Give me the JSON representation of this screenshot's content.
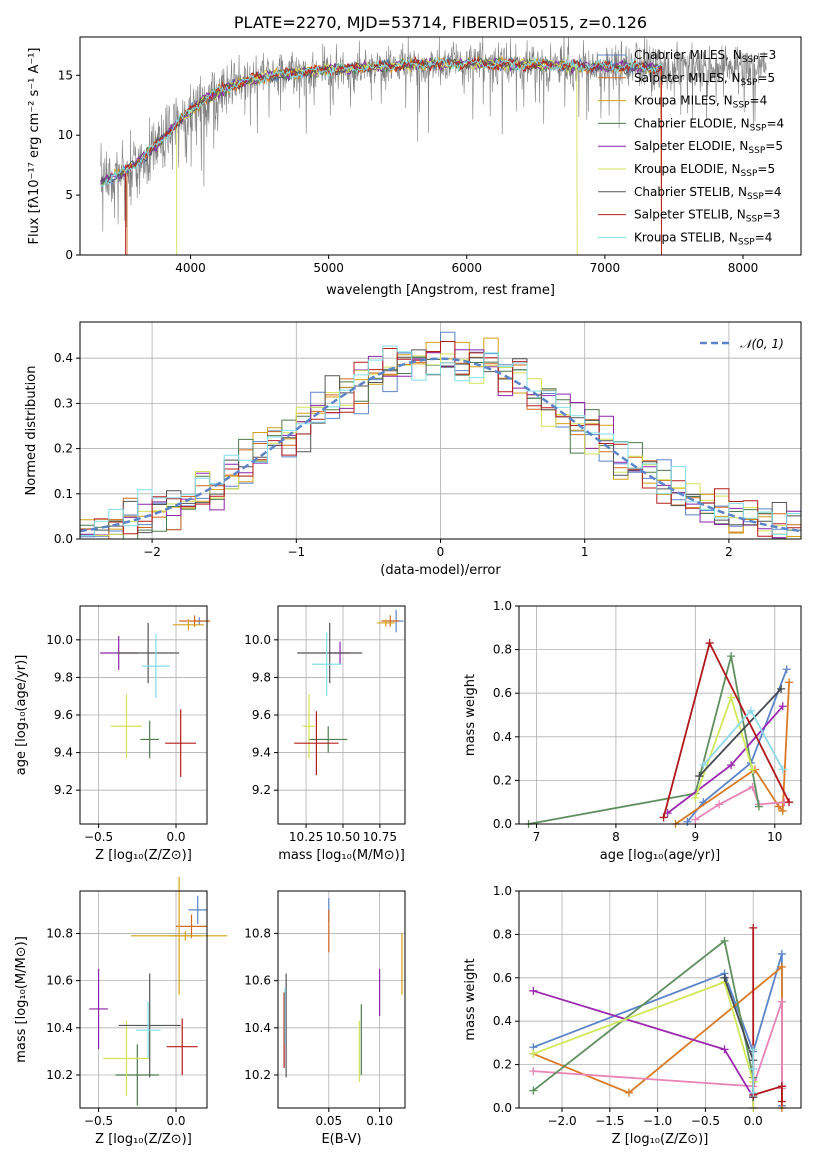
{
  "colors": {
    "Chabrier MILES": "#5b84c9",
    "Salpeter MILES": "#d2691e",
    "Kroupa MILES": "#d4a017",
    "Chabrier ELODIE": "#4e7a4e",
    "Salpeter ELODIE": "#8e24aa",
    "Kroupa ELODIE": "#d4e157",
    "Chabrier STELIB": "#555555",
    "Salpeter STELIB": "#b71c1c",
    "Kroupa STELIB": "#80deea",
    "Normal": "#5b84c9",
    "Data": "#808080",
    "mw_lines": [
      "#5b84c9",
      "#d97a26",
      "#e884b7",
      "#5f8f5f",
      "#9c27b0",
      "#cfe85a",
      "#444a52",
      "#b0161a",
      "#8fd9e8"
    ]
  },
  "chart_data": [
    {
      "id": "spectrum",
      "type": "line",
      "title": "PLATE=2270, MJD=53714, FIBERID=0515, z=0.126",
      "xlabel": "wavelength [Angstrom, rest frame]",
      "ylabel": "Flux [fλ10⁻¹⁷ erg cm⁻² s⁻¹ A⁻¹]",
      "xlim": [
        3200,
        8420
      ],
      "ylim": [
        0,
        18.2
      ],
      "xticks": [
        "4000",
        "5000",
        "6000",
        "7000",
        "8000"
      ],
      "yticks": [
        "0",
        "5",
        "10",
        "15"
      ],
      "legend_position": "right",
      "legend": [
        {
          "label": "Chabrier MILES, N",
          "sub": "SSP",
          "suffix": "=3",
          "color": "Chabrier MILES"
        },
        {
          "label": "Salpeter MILES, N",
          "sub": "SSP",
          "suffix": "=5",
          "color": "Salpeter MILES"
        },
        {
          "label": "Kroupa MILES, N",
          "sub": "SSP",
          "suffix": "=4",
          "color": "Kroupa MILES"
        },
        {
          "label": "Chabrier ELODIE, N",
          "sub": "SSP",
          "suffix": "=4",
          "color": "Chabrier ELODIE"
        },
        {
          "label": "Salpeter ELODIE, N",
          "sub": "SSP",
          "suffix": "=5",
          "color": "Salpeter ELODIE"
        },
        {
          "label": "Kroupa ELODIE, N",
          "sub": "SSP",
          "suffix": "=5",
          "color": "Kroupa ELODIE"
        },
        {
          "label": "Chabrier STELIB, N",
          "sub": "SSP",
          "suffix": "=4",
          "color": "Chabrier STELIB"
        },
        {
          "label": "Salpeter STELIB, N",
          "sub": "SSP",
          "suffix": "=3",
          "color": "Salpeter STELIB"
        },
        {
          "label": "Kroupa STELIB, N",
          "sub": "SSP",
          "suffix": "=4",
          "color": "Kroupa STELIB"
        }
      ],
      "continuum": {
        "x": [
          3350,
          3500,
          3700,
          3900,
          4100,
          4300,
          4500,
          4800,
          5200,
          5600,
          6000,
          6400,
          6800,
          7200,
          7430
        ],
        "y": [
          6.0,
          6.8,
          8.5,
          11.0,
          13.0,
          14.2,
          14.8,
          15.3,
          15.6,
          15.9,
          16.0,
          15.9,
          15.8,
          15.7,
          15.6
        ]
      },
      "truncations": [
        {
          "series": "Salpeter STELIB",
          "x_start": 3530,
          "x_end": 7410
        },
        {
          "series": "Kroupa ELODIE",
          "x_start": 3900,
          "x_end": 6800
        },
        {
          "series": "Salpeter MILES",
          "x_start": 3540,
          "x_end": 7410
        }
      ],
      "data_range": [
        3350,
        8170
      ]
    },
    {
      "id": "residuals",
      "type": "area",
      "xlabel": "(data-model)/error",
      "ylabel": "Normed distribution",
      "xlim": [
        -2.5,
        2.5
      ],
      "ylim": [
        0,
        0.48
      ],
      "xticks": [
        "−2",
        "−1",
        "0",
        "1",
        "2"
      ],
      "xtick_values": [
        -2,
        -1,
        0,
        1,
        2
      ],
      "yticks": [
        "0.0",
        "0.1",
        "0.2",
        "0.3",
        "0.4"
      ],
      "ytick_values": [
        0,
        0.1,
        0.2,
        0.3,
        0.4
      ],
      "legend_position": "top-right",
      "legend": [
        {
          "label": "𝒩(0, 1)",
          "style": "dashed"
        }
      ],
      "bin_width": 0.1,
      "series": [
        "Chabrier MILES",
        "Salpeter MILES",
        "Kroupa MILES",
        "Chabrier ELODIE",
        "Salpeter ELODIE",
        "Kroupa ELODIE",
        "Chabrier STELIB",
        "Salpeter STELIB",
        "Kroupa STELIB"
      ]
    },
    {
      "id": "age_vs_Z",
      "type": "scatter",
      "xlabel": "Z [log₁₀(Z/Z⊙)]",
      "ylabel": "age  [log₁₀(age/yr)]",
      "xlim": [
        -0.62,
        0.2
      ],
      "ylim": [
        9.02,
        10.18
      ],
      "xticks": [
        "−0.5",
        "0.0"
      ],
      "xtick_values": [
        -0.5,
        0.0
      ],
      "yticks": [
        "9.2",
        "9.4",
        "9.6",
        "9.8",
        "10.0"
      ],
      "ytick_values": [
        9.2,
        9.4,
        9.6,
        9.8,
        10.0
      ],
      "points": [
        {
          "series": "Chabrier MILES",
          "x": 0.15,
          "y": 10.1,
          "xerr": 0.04,
          "yerr": 0.02
        },
        {
          "series": "Salpeter MILES",
          "x": 0.12,
          "y": 10.1,
          "xerr": 0.1,
          "yerr": 0.03
        },
        {
          "series": "Kroupa MILES",
          "x": 0.08,
          "y": 10.08,
          "xerr": 0.1,
          "yerr": 0.03
        },
        {
          "series": "Chabrier ELODIE",
          "x": -0.17,
          "y": 9.47,
          "xerr": 0.06,
          "yerr": 0.1
        },
        {
          "series": "Salpeter ELODIE",
          "x": -0.37,
          "y": 9.93,
          "xerr": 0.12,
          "yerr": 0.09
        },
        {
          "series": "Kroupa ELODIE",
          "x": -0.32,
          "y": 9.54,
          "xerr": 0.1,
          "yerr": 0.17
        },
        {
          "series": "Chabrier STELIB",
          "x": -0.18,
          "y": 9.93,
          "xerr": 0.2,
          "yerr": 0.16
        },
        {
          "series": "Salpeter STELIB",
          "x": 0.03,
          "y": 9.45,
          "xerr": 0.1,
          "yerr": 0.18
        },
        {
          "series": "Kroupa STELIB",
          "x": -0.13,
          "y": 9.86,
          "xerr": 0.09,
          "yerr": 0.17
        }
      ]
    },
    {
      "id": "age_vs_mass",
      "type": "scatter",
      "xlabel": "mass [log₁₀(M/M⊙)]",
      "xlim": [
        10.06,
        10.92
      ],
      "ylim": [
        9.02,
        10.18
      ],
      "xticks": [
        "10.25",
        "10.50",
        "10.75"
      ],
      "xtick_values": [
        10.25,
        10.5,
        10.75
      ],
      "yticks": [
        "9.2",
        "9.4",
        "9.6",
        "9.8",
        "10.0"
      ],
      "ytick_values": [
        9.2,
        9.4,
        9.6,
        9.8,
        10.0
      ],
      "points": [
        {
          "series": "Chabrier MILES",
          "x": 10.86,
          "y": 10.1,
          "xerr": 0.05,
          "yerr": 0.06
        },
        {
          "series": "Salpeter MILES",
          "x": 10.82,
          "y": 10.1,
          "xerr": 0.06,
          "yerr": 0.03
        },
        {
          "series": "Kroupa MILES",
          "x": 10.79,
          "y": 10.09,
          "xerr": 0.06,
          "yerr": 0.02
        },
        {
          "series": "Chabrier ELODIE",
          "x": 10.4,
          "y": 9.47,
          "xerr": 0.13,
          "yerr": 0.07
        },
        {
          "series": "Salpeter ELODIE",
          "x": 10.48,
          "y": 9.93,
          "xerr": 0.07,
          "yerr": 0.06
        },
        {
          "series": "Kroupa ELODIE",
          "x": 10.27,
          "y": 9.54,
          "xerr": 0.04,
          "yerr": 0.17
        },
        {
          "series": "Chabrier STELIB",
          "x": 10.41,
          "y": 9.93,
          "xerr": 0.22,
          "yerr": 0.16
        },
        {
          "series": "Salpeter STELIB",
          "x": 10.32,
          "y": 9.45,
          "xerr": 0.15,
          "yerr": 0.17
        },
        {
          "series": "Kroupa STELIB",
          "x": 10.39,
          "y": 9.87,
          "xerr": 0.1,
          "yerr": 0.17
        }
      ]
    },
    {
      "id": "mw_vs_age",
      "type": "line",
      "xlabel": "age  [log₁₀(age/yr)]",
      "ylabel": "mass weight",
      "xlim": [
        6.78,
        10.33
      ],
      "ylim": [
        0,
        1.0
      ],
      "xticks": [
        "7",
        "8",
        "9",
        "10"
      ],
      "xtick_values": [
        7,
        8,
        9,
        10
      ],
      "yticks": [
        "0.0",
        "0.2",
        "0.4",
        "0.6",
        "0.8",
        "1.0"
      ],
      "ytick_values": [
        0,
        0.2,
        0.4,
        0.6,
        0.8,
        1.0
      ],
      "series": [
        {
          "color_index": 0,
          "x": [
            8.9,
            9.1,
            9.7,
            10.15
          ],
          "y": [
            0.01,
            0.1,
            0.28,
            0.71
          ]
        },
        {
          "color_index": 1,
          "x": [
            8.75,
            9.75,
            10.05,
            10.1,
            10.18
          ],
          "y": [
            0.0,
            0.25,
            0.08,
            0.06,
            0.65
          ]
        },
        {
          "color_index": 2,
          "x": [
            9.0,
            9.3,
            9.72,
            9.8,
            10.12
          ],
          "y": [
            0.02,
            0.09,
            0.17,
            0.09,
            0.1
          ]
        },
        {
          "color_index": 3,
          "x": [
            6.9,
            9.0,
            9.45,
            9.8
          ],
          "y": [
            0.0,
            0.14,
            0.77,
            0.08
          ]
        },
        {
          "color_index": 4,
          "x": [
            8.65,
            9.45,
            10.1
          ],
          "y": [
            0.05,
            0.27,
            0.54
          ]
        },
        {
          "color_index": 5,
          "x": [
            9.0,
            9.45,
            9.72
          ],
          "y": [
            0.12,
            0.58,
            0.25
          ]
        },
        {
          "color_index": 6,
          "x": [
            9.05,
            10.08
          ],
          "y": [
            0.22,
            0.62
          ]
        },
        {
          "color_index": 7,
          "x": [
            8.6,
            9.18,
            10.18
          ],
          "y": [
            0.03,
            0.83,
            0.1
          ]
        },
        {
          "color_index": 8,
          "x": [
            9.1,
            9.7,
            10.1
          ],
          "y": [
            0.27,
            0.52,
            0.25
          ]
        }
      ]
    },
    {
      "id": "mass_vs_Z",
      "type": "scatter",
      "xlabel": "Z [log₁₀(Z/Z⊙)]",
      "ylabel": "mass [log₁₀(M/M⊙)]",
      "xlim": [
        -0.62,
        0.2
      ],
      "ylim": [
        10.06,
        10.98
      ],
      "xticks": [
        "−0.5",
        "0.0"
      ],
      "xtick_values": [
        -0.5,
        0.0
      ],
      "yticks": [
        "10.2",
        "10.4",
        "10.6",
        "10.8"
      ],
      "ytick_values": [
        10.2,
        10.4,
        10.6,
        10.8
      ],
      "points": [
        {
          "series": "Chabrier MILES",
          "x": 0.14,
          "y": 10.9,
          "xerr": 0.06,
          "yerr": 0.06
        },
        {
          "series": "Salpeter MILES",
          "x": 0.1,
          "y": 10.83,
          "xerr": 0.1,
          "yerr": 0.05
        },
        {
          "series": "Kroupa MILES",
          "x": 0.06,
          "y": 10.79,
          "xerr": 0.1,
          "yerr": 0.02
        },
        {
          "series": "Chabrier ELODIE",
          "x": -0.25,
          "y": 10.2,
          "xerr": 0.14,
          "yerr": 0.13
        },
        {
          "series": "Salpeter ELODIE",
          "x": -0.5,
          "y": 10.48,
          "xerr": 0.06,
          "yerr": 0.17
        },
        {
          "series": "Kroupa ELODIE",
          "x": -0.32,
          "y": 10.27,
          "xerr": 0.15,
          "yerr": 0.16
        },
        {
          "series": "Chabrier STELIB",
          "x": -0.17,
          "y": 10.41,
          "xerr": 0.2,
          "yerr": 0.22
        },
        {
          "series": "Salpeter STELIB",
          "x": 0.04,
          "y": 10.32,
          "xerr": 0.1,
          "yerr": 0.12
        },
        {
          "series": "Kroupa STELIB",
          "x": -0.18,
          "y": 10.39,
          "xerr": 0.08,
          "yerr": 0.12
        },
        {
          "series": "Kroupa MILES",
          "x": 0.02,
          "y": 10.79,
          "xerr": 0.31,
          "yerr": 0.25
        }
      ]
    },
    {
      "id": "mass_vs_ebv",
      "type": "scatter",
      "xlabel": "E(B-V)",
      "xlim": [
        0.0,
        0.125
      ],
      "ylim": [
        10.06,
        10.98
      ],
      "xticks": [
        "0.05",
        "0.10"
      ],
      "xtick_values": [
        0.05,
        0.1
      ],
      "yticks": [
        "10.2",
        "10.4",
        "10.6",
        "10.8"
      ],
      "ytick_values": [
        10.2,
        10.4,
        10.6,
        10.8
      ],
      "points": [
        {
          "series": "Chabrier MILES",
          "x": 0.05,
          "y": 10.9,
          "yerr": 0.05
        },
        {
          "series": "Salpeter MILES",
          "x": 0.05,
          "y": 10.81,
          "yerr": 0.09
        },
        {
          "series": "Chabrier ELODIE",
          "x": 0.082,
          "y": 10.35,
          "yerr": 0.15
        },
        {
          "series": "Salpeter ELODIE",
          "x": 0.1,
          "y": 10.55,
          "yerr": 0.1
        },
        {
          "series": "Kroupa ELODIE",
          "x": 0.08,
          "y": 10.3,
          "yerr": 0.13
        },
        {
          "series": "Chabrier STELIB",
          "x": 0.008,
          "y": 10.41,
          "yerr": 0.22
        },
        {
          "series": "Salpeter STELIB",
          "x": 0.006,
          "y": 10.39,
          "yerr": 0.16
        },
        {
          "series": "Kroupa STELIB",
          "x": 0.007,
          "y": 10.45,
          "yerr": 0.12
        },
        {
          "series": "Kroupa MILES",
          "x": 0.122,
          "y": 10.67,
          "yerr": 0.13
        }
      ]
    },
    {
      "id": "mw_vs_Z",
      "type": "line",
      "xlabel": "Z [log₁₀(Z/Z⊙)]",
      "ylabel": "mass weight",
      "xlim": [
        -2.45,
        0.5
      ],
      "ylim": [
        0,
        1.0
      ],
      "xticks": [
        "−2.0",
        "−1.5",
        "−1.0",
        "−0.5",
        "0.0"
      ],
      "xtick_values": [
        -2,
        -1.5,
        -1,
        -0.5,
        0
      ],
      "yticks": [
        "0.0",
        "0.2",
        "0.4",
        "0.6",
        "0.8",
        "1.0"
      ],
      "ytick_values": [
        0,
        0.2,
        0.4,
        0.6,
        0.8,
        1.0
      ],
      "series": [
        {
          "color_index": 0,
          "x": [
            -2.3,
            -0.3,
            0.0,
            0.3,
            0.3
          ],
          "y": [
            0.28,
            0.62,
            0.26,
            0.71,
            0.01
          ]
        },
        {
          "color_index": 1,
          "x": [
            -2.3,
            -1.3,
            0.3,
            0.3
          ],
          "y": [
            0.25,
            0.07,
            0.65,
            0.0
          ]
        },
        {
          "color_index": 2,
          "x": [
            -2.3,
            0.0,
            0.3,
            0.3
          ],
          "y": [
            0.17,
            0.1,
            0.49,
            0.09
          ]
        },
        {
          "color_index": 3,
          "x": [
            -2.3,
            -0.3,
            0.0,
            0.0
          ],
          "y": [
            0.08,
            0.77,
            0.14,
            0.05
          ]
        },
        {
          "color_index": 4,
          "x": [
            -2.3,
            -0.3,
            0.0,
            0.0
          ],
          "y": [
            0.54,
            0.27,
            0.05,
            0.0
          ]
        },
        {
          "color_index": 5,
          "x": [
            -2.3,
            -0.3,
            0.0,
            0.0
          ],
          "y": [
            0.25,
            0.58,
            0.12,
            0.0
          ]
        },
        {
          "color_index": 6,
          "x": [
            -0.3,
            0.0,
            0.0
          ],
          "y": [
            0.6,
            0.22,
            0.05
          ]
        },
        {
          "color_index": 7,
          "x": [
            -0.0,
            0.0,
            0.3,
            0.3
          ],
          "y": [
            0.83,
            0.06,
            0.1,
            0.03
          ]
        },
        {
          "color_index": 8,
          "x": [
            0.0,
            0.0,
            0.0
          ],
          "y": [
            0.27,
            0.18,
            0.07
          ]
        }
      ]
    }
  ]
}
